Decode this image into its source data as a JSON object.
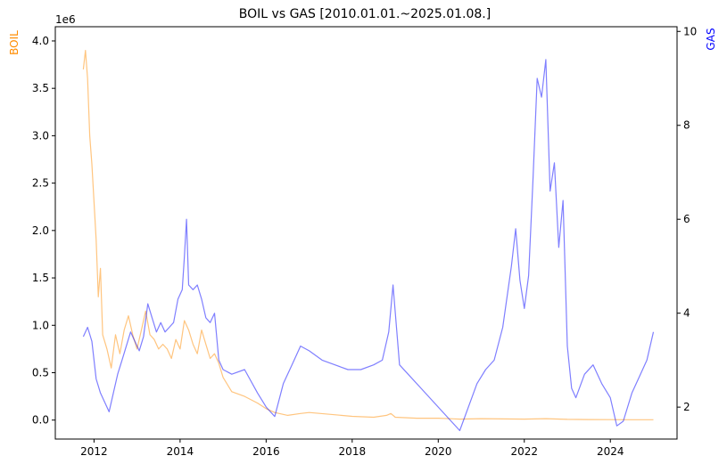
{
  "chart_data": {
    "type": "line",
    "title": "BOIL vs GAS [2010.01.01.~2025.01.08.]",
    "x_ticks": [
      "2012",
      "2014",
      "2016",
      "2018",
      "2020",
      "2022",
      "2024"
    ],
    "xlim": [
      2011.1,
      2025.55
    ],
    "left_axis": {
      "label": "BOIL",
      "offset_text": "1e6",
      "color": "#ff8c00",
      "ticks": [
        "0.0",
        "0.5",
        "1.0",
        "1.5",
        "2.0",
        "2.5",
        "3.0",
        "3.5",
        "4.0"
      ],
      "ylim": [
        -0.2,
        4.15
      ]
    },
    "right_axis": {
      "label": "GAS",
      "color": "#0000ff",
      "ticks": [
        "2",
        "4",
        "6",
        "8",
        "10"
      ],
      "ylim": [
        1.32,
        10.1
      ]
    },
    "grid": false,
    "series": [
      {
        "name": "BOIL",
        "axis": "left",
        "color": "#ff8c00",
        "alpha": 0.5,
        "x": [
          2011.75,
          2011.8,
          2011.85,
          2011.9,
          2011.95,
          2012.0,
          2012.05,
          2012.1,
          2012.15,
          2012.2,
          2012.3,
          2012.4,
          2012.5,
          2012.6,
          2012.7,
          2012.8,
          2012.9,
          2013.0,
          2013.1,
          2013.2,
          2013.3,
          2013.4,
          2013.5,
          2013.6,
          2013.7,
          2013.8,
          2013.9,
          2014.0,
          2014.1,
          2014.2,
          2014.3,
          2014.4,
          2014.5,
          2014.6,
          2014.7,
          2014.8,
          2014.9,
          2015.0,
          2015.2,
          2015.5,
          2015.8,
          2016.0,
          2016.2,
          2016.5,
          2016.8,
          2017.0,
          2017.5,
          2018.0,
          2018.5,
          2018.8,
          2018.9,
          2019.0,
          2019.5,
          2020.0,
          2020.5,
          2021.0,
          2021.5,
          2022.0,
          2022.5,
          2023.0,
          2023.5,
          2024.0,
          2024.5,
          2025.0
        ],
        "y": [
          3.7,
          3.9,
          3.6,
          3.0,
          2.7,
          2.3,
          1.9,
          1.3,
          1.6,
          0.9,
          0.75,
          0.55,
          0.9,
          0.7,
          0.95,
          1.1,
          0.9,
          0.75,
          0.95,
          1.15,
          0.9,
          0.85,
          0.75,
          0.8,
          0.75,
          0.65,
          0.85,
          0.75,
          1.05,
          0.95,
          0.8,
          0.7,
          0.95,
          0.8,
          0.65,
          0.7,
          0.6,
          0.45,
          0.3,
          0.25,
          0.18,
          0.12,
          0.08,
          0.05,
          0.07,
          0.08,
          0.06,
          0.04,
          0.03,
          0.05,
          0.07,
          0.03,
          0.02,
          0.02,
          0.01,
          0.015,
          0.012,
          0.01,
          0.015,
          0.008,
          0.006,
          0.005,
          0.004,
          0.004
        ]
      },
      {
        "name": "GAS",
        "axis": "right",
        "color": "#0000ff",
        "alpha": 0.5,
        "x": [
          2011.75,
          2011.85,
          2011.95,
          2012.05,
          2012.15,
          2012.25,
          2012.35,
          2012.45,
          2012.55,
          2012.65,
          2012.75,
          2012.85,
          2012.95,
          2013.05,
          2013.15,
          2013.25,
          2013.35,
          2013.45,
          2013.55,
          2013.65,
          2013.75,
          2013.85,
          2013.95,
          2014.05,
          2014.1,
          2014.15,
          2014.2,
          2014.3,
          2014.4,
          2014.5,
          2014.6,
          2014.7,
          2014.8,
          2014.9,
          2015.0,
          2015.2,
          2015.5,
          2015.8,
          2016.0,
          2016.2,
          2016.4,
          2016.6,
          2016.8,
          2017.0,
          2017.3,
          2017.6,
          2017.9,
          2018.2,
          2018.5,
          2018.7,
          2018.85,
          2018.95,
          2019.1,
          2019.3,
          2019.6,
          2019.9,
          2020.1,
          2020.3,
          2020.5,
          2020.7,
          2020.9,
          2021.1,
          2021.3,
          2021.5,
          2021.7,
          2021.8,
          2021.9,
          2022.0,
          2022.1,
          2022.2,
          2022.3,
          2022.4,
          2022.5,
          2022.6,
          2022.7,
          2022.8,
          2022.9,
          2023.0,
          2023.1,
          2023.2,
          2023.4,
          2023.6,
          2023.8,
          2024.0,
          2024.15,
          2024.3,
          2024.5,
          2024.7,
          2024.85,
          2025.0
        ],
        "y": [
          3.5,
          3.7,
          3.4,
          2.6,
          2.3,
          2.1,
          1.9,
          2.3,
          2.7,
          3.0,
          3.3,
          3.6,
          3.4,
          3.2,
          3.5,
          4.2,
          3.9,
          3.6,
          3.8,
          3.6,
          3.7,
          3.8,
          4.3,
          4.5,
          5.2,
          6.0,
          4.6,
          4.5,
          4.6,
          4.3,
          3.9,
          3.8,
          4.0,
          3.0,
          2.8,
          2.7,
          2.8,
          2.3,
          2.0,
          1.8,
          2.5,
          2.9,
          3.3,
          3.2,
          3.0,
          2.9,
          2.8,
          2.8,
          2.9,
          3.0,
          3.6,
          4.6,
          2.9,
          2.7,
          2.4,
          2.1,
          1.9,
          1.7,
          1.5,
          2.0,
          2.5,
          2.8,
          3.0,
          3.7,
          5.0,
          5.8,
          4.7,
          4.1,
          4.8,
          6.8,
          9.0,
          8.6,
          9.4,
          6.6,
          7.2,
          5.4,
          6.4,
          3.3,
          2.4,
          2.2,
          2.7,
          2.9,
          2.5,
          2.2,
          1.6,
          1.7,
          2.3,
          2.7,
          3.0,
          3.6
        ]
      }
    ]
  }
}
